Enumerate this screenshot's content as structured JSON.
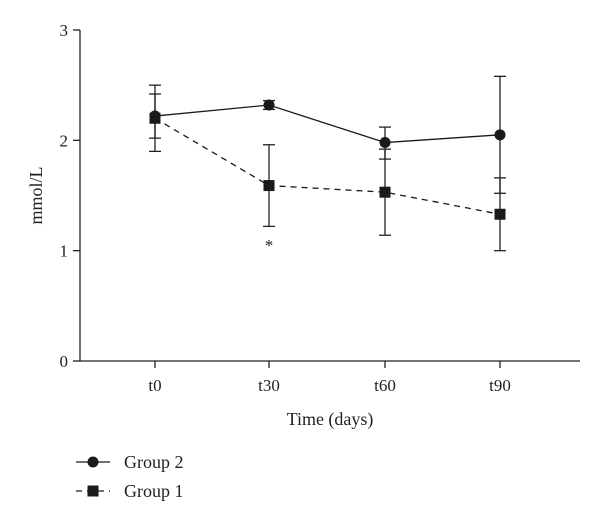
{
  "chart_data": {
    "type": "line",
    "xlabel": "Time (days)",
    "ylabel": "mmol/L",
    "categories": [
      "t0",
      "t30",
      "t60",
      "t90"
    ],
    "ylim": [
      0,
      3
    ],
    "yticks": [
      0,
      1,
      2,
      3
    ],
    "grid": false,
    "legend_position": "bottom-left",
    "series": [
      {
        "name": "Group 2",
        "marker": "circle",
        "line_style": "solid",
        "values": [
          2.22,
          2.32,
          1.98,
          2.05
        ],
        "err_low": [
          2.02,
          2.28,
          1.83,
          1.52
        ],
        "err_high": [
          2.42,
          2.36,
          2.12,
          2.58
        ]
      },
      {
        "name": "Group 1",
        "marker": "square",
        "line_style": "dashed",
        "values": [
          2.2,
          1.59,
          1.53,
          1.33
        ],
        "err_low": [
          1.9,
          1.22,
          1.14,
          1.0
        ],
        "err_high": [
          2.5,
          1.96,
          1.92,
          1.66
        ]
      }
    ],
    "annotations": [
      {
        "text": "*",
        "category": "t30"
      }
    ]
  }
}
